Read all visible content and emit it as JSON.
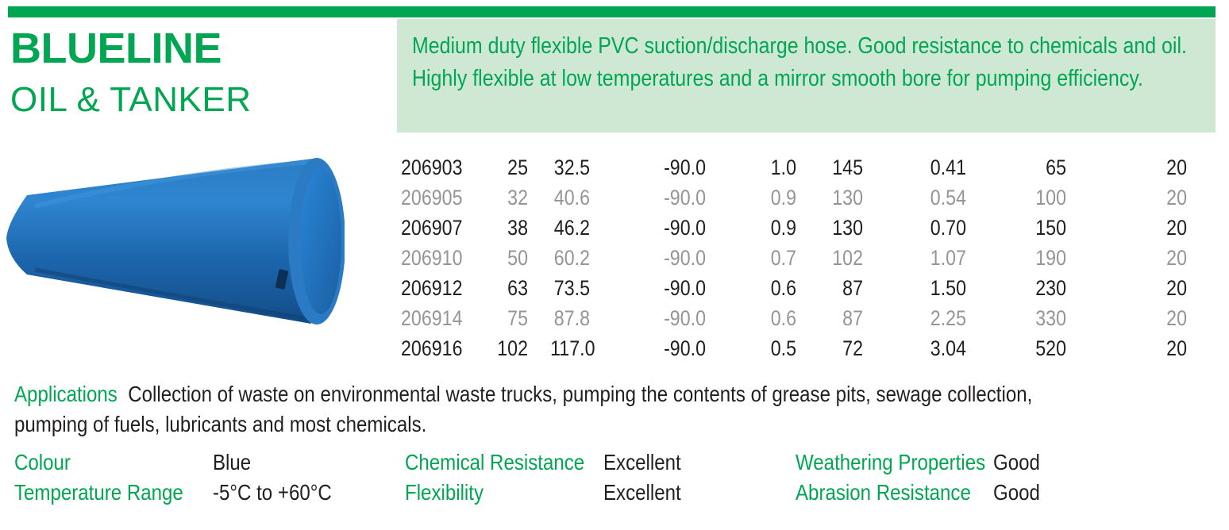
{
  "header": {
    "title": "BLUELINE",
    "subtitle": "OIL & TANKER"
  },
  "description": "Medium duty flexible PVC suction/discharge hose. Good resistance to chemicals and oil. Highly flexible at low temperatures and a mirror smooth bore for pumping efficiency.",
  "product_image": "blue-hose-image",
  "table": {
    "rows": [
      [
        "206903",
        "25",
        "32.5",
        "-90.0",
        "1.0",
        "145",
        "0.41",
        "65",
        "20"
      ],
      [
        "206905",
        "32",
        "40.6",
        "-90.0",
        "0.9",
        "130",
        "0.54",
        "100",
        "20"
      ],
      [
        "206907",
        "38",
        "46.2",
        "-90.0",
        "0.9",
        "130",
        "0.70",
        "150",
        "20"
      ],
      [
        "206910",
        "50",
        "60.2",
        "-90.0",
        "0.7",
        "102",
        "1.07",
        "190",
        "20"
      ],
      [
        "206912",
        "63",
        "73.5",
        "-90.0",
        "0.6",
        "87",
        "1.50",
        "230",
        "20"
      ],
      [
        "206914",
        "75",
        "87.8",
        "-90.0",
        "0.6",
        "87",
        "2.25",
        "330",
        "20"
      ],
      [
        "206916",
        "102",
        "117.0",
        "-90.0",
        "0.5",
        "72",
        "3.04",
        "520",
        "20"
      ]
    ]
  },
  "applications": {
    "label": "Applications",
    "text": "Collection of waste on environmental waste trucks, pumping the contents of grease pits, sewage collection, pumping of fuels, lubricants and most chemicals."
  },
  "properties": {
    "colour_label": "Colour",
    "colour_value": "Blue",
    "temperature_label": "Temperature Range",
    "temperature_value": "-5°C to +60°C",
    "chemical_label": "Chemical Resistance",
    "chemical_value": "Excellent",
    "flexibility_label": "Flexibility",
    "flexibility_value": "Excellent",
    "weathering_label": "Weathering Properties",
    "weathering_value": "Good",
    "abrasion_label": "Abrasion Resistance",
    "abrasion_value": "Good"
  },
  "colors": {
    "brand_green": "#00a651",
    "description_bg": "#cfe8d3",
    "hose_blue": "#1f6fb5"
  }
}
